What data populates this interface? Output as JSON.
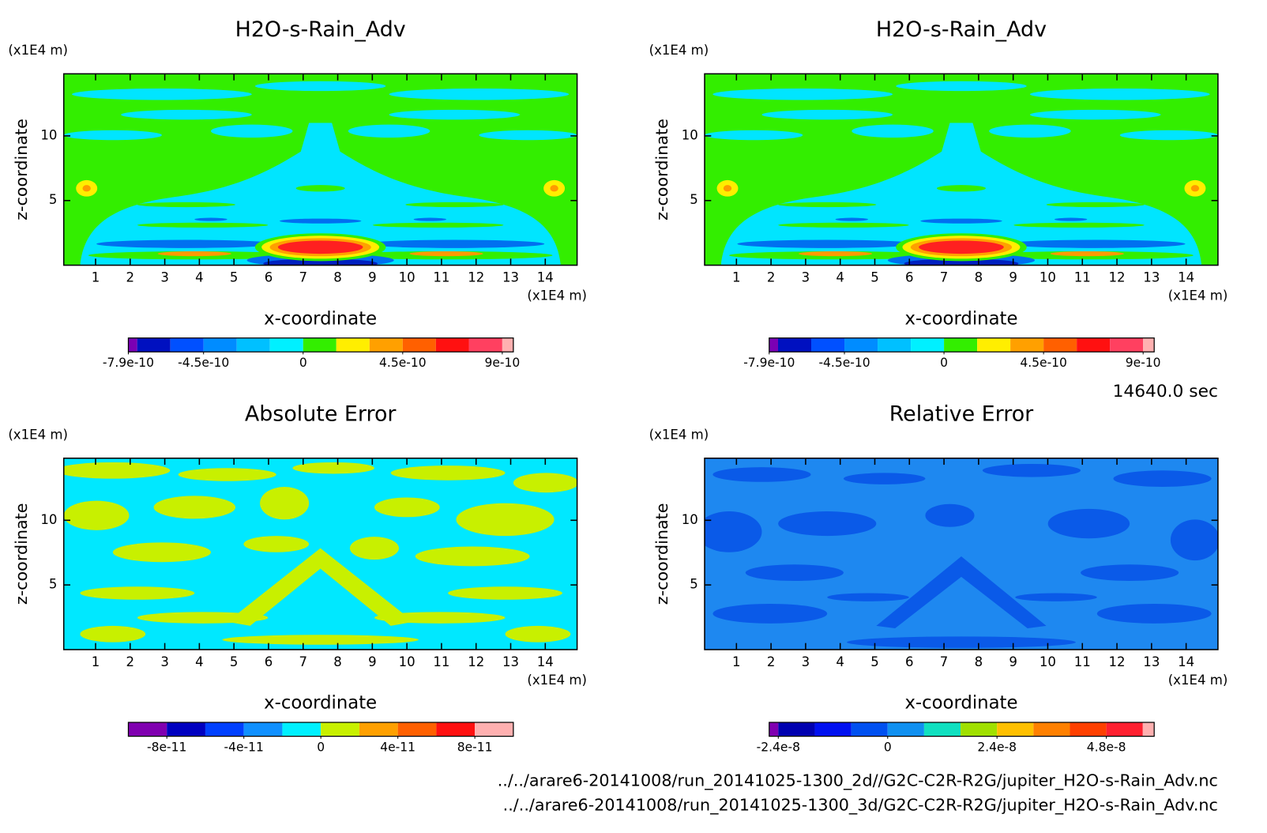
{
  "chart_data": [
    {
      "type": "contour",
      "title": "H2O-s-Rain_Adv",
      "x_label": "x-coordinate",
      "y_label": "z-coordinate",
      "x_unit": "(x1E4 m)",
      "y_unit": "(x1E4 m)",
      "xlim": [
        0.08,
        14.92
      ],
      "xticks": [
        1,
        2,
        3,
        4,
        5,
        6,
        7,
        8,
        9,
        10,
        11,
        12,
        13,
        14
      ],
      "ylim": [
        0,
        14.8
      ],
      "yticks": [
        5,
        10
      ],
      "colorbar": {
        "levels": [
          -7.9e-10,
          -7.5e-10,
          -6e-10,
          -4.5e-10,
          -3e-10,
          -1.5e-10,
          0,
          1.5e-10,
          3e-10,
          4.5e-10,
          6e-10,
          7.5e-10,
          9e-10,
          9.5e-10
        ],
        "colors": [
          "#7a00b4",
          "#0010c0",
          "#0050ff",
          "#008cff",
          "#00c0ff",
          "#00f0ff",
          "#33ee00",
          "#ffee00",
          "#ffa000",
          "#ff6000",
          "#ff1010",
          "#ff4060",
          "#ffb0b0"
        ],
        "ticks": [
          -7.9e-10,
          -4.5e-10,
          0,
          4.5e-10,
          9e-10
        ]
      }
    },
    {
      "type": "contour",
      "title": "H2O-s-Rain_Adv",
      "x_label": "x-coordinate",
      "y_label": "z-coordinate",
      "x_unit": "(x1E4 m)",
      "y_unit": "(x1E4 m)",
      "xlim": [
        0.08,
        14.92
      ],
      "xticks": [
        1,
        2,
        3,
        4,
        5,
        6,
        7,
        8,
        9,
        10,
        11,
        12,
        13,
        14
      ],
      "ylim": [
        0,
        14.8
      ],
      "yticks": [
        5,
        10
      ],
      "colorbar": {
        "levels": [
          -7.9e-10,
          -7.5e-10,
          -6e-10,
          -4.5e-10,
          -3e-10,
          -1.5e-10,
          0,
          1.5e-10,
          3e-10,
          4.5e-10,
          6e-10,
          7.5e-10,
          9e-10,
          9.5e-10
        ],
        "colors": [
          "#7a00b4",
          "#0010c0",
          "#0050ff",
          "#008cff",
          "#00c0ff",
          "#00f0ff",
          "#33ee00",
          "#ffee00",
          "#ffa000",
          "#ff6000",
          "#ff1010",
          "#ff4060",
          "#ffb0b0"
        ],
        "ticks": [
          -7.9e-10,
          -4.5e-10,
          0,
          4.5e-10,
          9e-10
        ]
      }
    },
    {
      "type": "contour",
      "title": "Absolute Error",
      "x_label": "x-coordinate",
      "y_label": "z-coordinate",
      "x_unit": "(x1E4 m)",
      "y_unit": "(x1E4 m)",
      "xlim": [
        0.08,
        14.92
      ],
      "xticks": [
        1,
        2,
        3,
        4,
        5,
        6,
        7,
        8,
        9,
        10,
        11,
        12,
        13,
        14
      ],
      "ylim": [
        0,
        14.8
      ],
      "yticks": [
        5,
        10
      ],
      "colorbar": {
        "levels": [
          -1e-10,
          -8e-11,
          -6e-11,
          -4e-11,
          -2e-11,
          0,
          2e-11,
          4e-11,
          6e-11,
          8e-11,
          1e-10
        ],
        "colors": [
          "#8000b0",
          "#0000c0",
          "#0040ff",
          "#1090ff",
          "#00f0ff",
          "#c8f000",
          "#ffa000",
          "#ff6000",
          "#ff1010",
          "#ffb0b0"
        ],
        "ticks": [
          -8e-11,
          -4e-11,
          0,
          4e-11,
          8e-11
        ]
      }
    },
    {
      "type": "contour",
      "title": "Relative Error",
      "x_label": "x-coordinate",
      "y_label": "z-coordinate",
      "x_unit": "(x1E4 m)",
      "y_unit": "(x1E4 m)",
      "xlim": [
        0.08,
        14.92
      ],
      "xticks": [
        1,
        2,
        3,
        4,
        5,
        6,
        7,
        8,
        9,
        10,
        11,
        12,
        13,
        14
      ],
      "ylim": [
        0,
        14.8
      ],
      "yticks": [
        5,
        10
      ],
      "colorbar": {
        "levels": [
          -2.6e-08,
          -2.4e-08,
          -1.6e-08,
          -8e-09,
          0,
          8e-09,
          1.6e-08,
          2.4e-08,
          3.2e-08,
          4e-08,
          4.8e-08,
          5.6e-08,
          5.85e-08
        ],
        "colors": [
          "#8000b0",
          "#0000b0",
          "#0010f0",
          "#0050f0",
          "#1090f0",
          "#10e0c0",
          "#a0e000",
          "#ffc000",
          "#ff8000",
          "#ff4000",
          "#ff2030",
          "#ffb0b0"
        ],
        "ticks": [
          -2.4e-08,
          0,
          2.4e-08,
          4.8e-08
        ]
      }
    }
  ],
  "time_label": "14640.0 sec",
  "files": [
    "../../arare6-20141008/run_20141025-1300_2d//G2C-C2R-R2G/jupiter_H2O-s-Rain_Adv.nc",
    "../../arare6-20141008/run_20141025-1300_3d/G2C-C2R-R2G/jupiter_H2O-s-Rain_Adv.nc"
  ]
}
